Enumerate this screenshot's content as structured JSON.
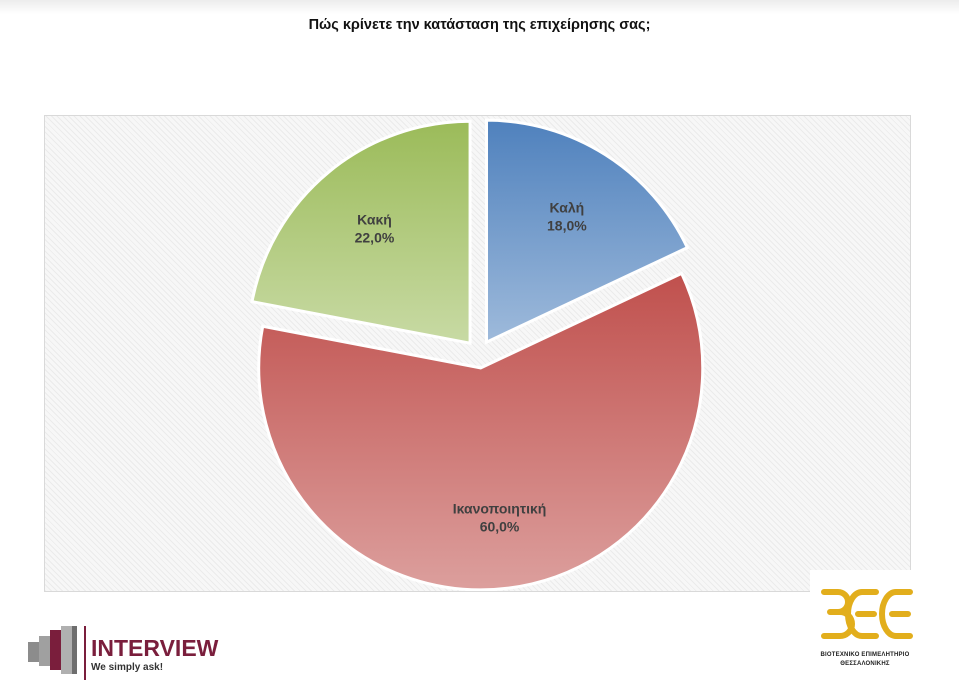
{
  "chart_title": "Πώς κρίνετε την κατάσταση της επιχείρησης σας;",
  "chart_data": {
    "type": "pie",
    "title": "Πώς κρίνετε την κατάσταση της επιχείρησης σας;",
    "categories": [
      "Καλή",
      "Ικανοποιητική",
      "Κακή"
    ],
    "values": [
      18.0,
      60.0,
      22.0
    ],
    "value_labels": [
      "18,0%",
      "60,0%",
      "22,0%"
    ],
    "colors": [
      "#4f81bd",
      "#c0504d",
      "#9bbb59"
    ],
    "exploded": true,
    "legend": "none"
  },
  "logos": {
    "interview": {
      "name": "INTERVIEW",
      "tagline": "We simply ask!",
      "color": "#7a1e3c"
    },
    "bee": {
      "mark": "ΒΕΘ",
      "caption_line1": "ΒΙΟΤΕΧΝΙΚΟ ΕΠΙΜΕΛΗΤΗΡΙΟ",
      "caption_line2": "ΘΕΣΣΑΛΟΝΙΚΗΣ",
      "color": "#e2ae1c"
    }
  }
}
